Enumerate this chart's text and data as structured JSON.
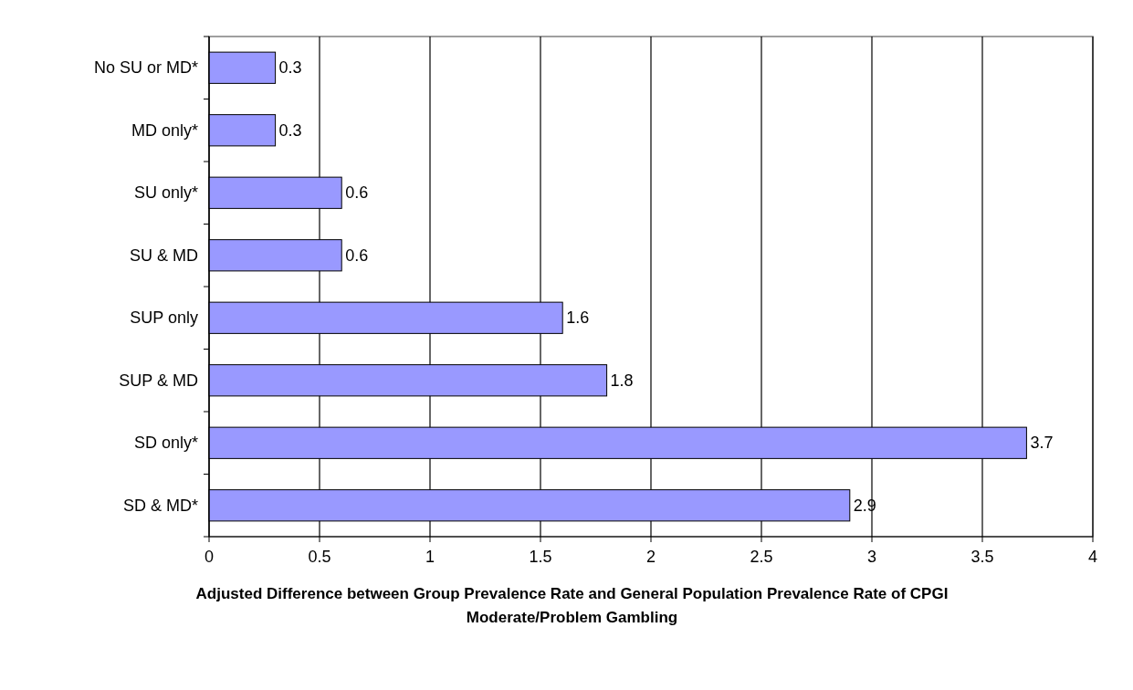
{
  "chart_data": {
    "type": "bar",
    "orientation": "horizontal",
    "xlabel": "Adjusted Difference between Group Prevalence Rate and General Population Prevalence Rate of CPGI Moderate/Problem Gambling",
    "categories": [
      "No SU or MD*",
      "MD only*",
      "SU only*",
      "SU & MD",
      "SUP only",
      "SUP & MD",
      "SD only*",
      "SD & MD*"
    ],
    "values": [
      0.3,
      0.3,
      0.6,
      0.6,
      1.6,
      1.8,
      3.7,
      2.9
    ],
    "color": "#9999ff",
    "xlim": [
      0,
      4
    ],
    "xticks": [
      0,
      0.5,
      1,
      1.5,
      2,
      2.5,
      3,
      3.5,
      4
    ],
    "grid": "x",
    "data_labels": true
  }
}
